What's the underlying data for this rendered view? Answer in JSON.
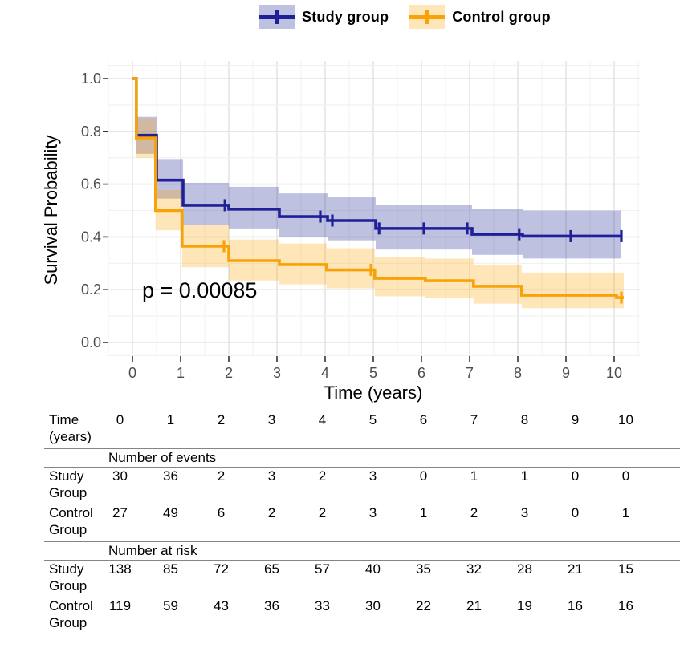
{
  "chart_data": {
    "type": "line",
    "subtype": "kaplan-meier-step",
    "title": "",
    "xlabel": "Time (years)",
    "ylabel": "Survival Probability",
    "p_label": "p = 0.00085",
    "xlim": [
      0,
      10
    ],
    "ylim": [
      0,
      1
    ],
    "x_ticks": [
      "0",
      "1",
      "2",
      "3",
      "4",
      "5",
      "6",
      "7",
      "8",
      "9",
      "10"
    ],
    "y_ticks": [
      "0.0",
      "0.2",
      "0.4",
      "0.6",
      "0.8",
      "1.0"
    ],
    "grid": "on",
    "legend_position": "top",
    "series": [
      {
        "name": "Study group",
        "color": "#1F1F97",
        "band_color": "rgba(44,51,152,0.30)",
        "start": [
          0,
          1.0
        ],
        "steps": [
          [
            0.08,
            0.785
          ],
          [
            0.5,
            0.615
          ],
          [
            1.05,
            0.52
          ],
          [
            2.0,
            0.505
          ],
          [
            3.05,
            0.477
          ],
          [
            4.05,
            0.462
          ],
          [
            5.05,
            0.432
          ],
          [
            7.05,
            0.41
          ],
          [
            8.1,
            0.403
          ]
        ],
        "end_t": 10.15,
        "censor_times": [
          1.92,
          3.9,
          4.15,
          5.12,
          6.05,
          6.95,
          8.03,
          9.1,
          10.15
        ],
        "bands": [
          [
            0.08,
            0.5,
            0.715,
            0.855
          ],
          [
            0.5,
            1.05,
            0.545,
            0.695
          ],
          [
            1.05,
            2.0,
            0.445,
            0.605
          ],
          [
            2.0,
            3.05,
            0.432,
            0.59
          ],
          [
            3.05,
            4.05,
            0.4,
            0.565
          ],
          [
            4.05,
            5.05,
            0.387,
            0.55
          ],
          [
            5.05,
            7.05,
            0.352,
            0.522
          ],
          [
            7.05,
            8.1,
            0.332,
            0.505
          ],
          [
            8.1,
            10.15,
            0.318,
            0.5
          ]
        ]
      },
      {
        "name": "Control group",
        "color": "#F9A207",
        "band_color": "rgba(255,165,0,0.28)",
        "start": [
          0,
          1.0
        ],
        "steps": [
          [
            0.08,
            0.775
          ],
          [
            0.48,
            0.5
          ],
          [
            1.03,
            0.365
          ],
          [
            2.0,
            0.31
          ],
          [
            3.05,
            0.295
          ],
          [
            4.03,
            0.275
          ],
          [
            5.03,
            0.243
          ],
          [
            6.08,
            0.234
          ],
          [
            7.08,
            0.213
          ],
          [
            8.08,
            0.179
          ],
          [
            10.05,
            0.17
          ]
        ],
        "end_t": 10.2,
        "censor_times": [
          1.9,
          4.95,
          10.15
        ],
        "bands": [
          [
            0.08,
            0.48,
            0.7,
            0.85
          ],
          [
            0.48,
            1.03,
            0.425,
            0.578
          ],
          [
            1.03,
            2.0,
            0.285,
            0.445
          ],
          [
            2.0,
            3.05,
            0.235,
            0.39
          ],
          [
            3.05,
            4.03,
            0.22,
            0.375
          ],
          [
            4.03,
            5.03,
            0.205,
            0.357
          ],
          [
            5.03,
            6.08,
            0.175,
            0.325
          ],
          [
            6.08,
            7.08,
            0.167,
            0.318
          ],
          [
            7.08,
            8.08,
            0.147,
            0.295
          ],
          [
            8.08,
            10.2,
            0.13,
            0.265
          ]
        ]
      }
    ]
  },
  "table": {
    "time_label": "Time (years)",
    "time_values": [
      "0",
      "1",
      "2",
      "3",
      "4",
      "5",
      "6",
      "7",
      "8",
      "9",
      "10"
    ],
    "sections": [
      {
        "title": "Number of events",
        "rows": [
          {
            "label": "Study Group",
            "values": [
              "30",
              "36",
              "2",
              "3",
              "2",
              "3",
              "0",
              "1",
              "1",
              "0",
              "0"
            ]
          },
          {
            "label": "Control Group",
            "values": [
              "27",
              "49",
              "6",
              "2",
              "2",
              "3",
              "1",
              "2",
              "3",
              "0",
              "1"
            ]
          }
        ]
      },
      {
        "title": "Number at risk",
        "rows": [
          {
            "label": "Study Group",
            "values": [
              "138",
              "85",
              "72",
              "65",
              "57",
              "40",
              "35",
              "32",
              "28",
              "21",
              "15"
            ]
          },
          {
            "label": "Control Group",
            "values": [
              "119",
              "59",
              "43",
              "36",
              "33",
              "30",
              "22",
              "21",
              "19",
              "16",
              "16"
            ]
          }
        ]
      }
    ]
  },
  "style": {
    "grid_major": "#e4e4e4",
    "grid_minor": "#f1f1f1",
    "tick_color": "#333333",
    "tick_label_color": "#4d4d4d",
    "axis_title_color": "#000000"
  }
}
